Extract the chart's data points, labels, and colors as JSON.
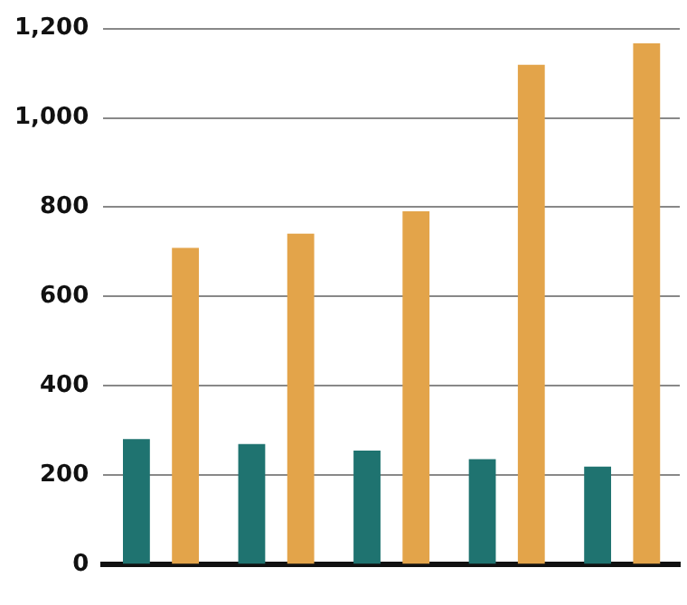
{
  "chart_data": {
    "type": "bar",
    "categories": [
      null,
      null,
      null,
      null,
      null
    ],
    "series": [
      {
        "color": "#1f7370",
        "values": [
          281,
          270,
          255,
          236,
          219
        ]
      },
      {
        "color": "#e3a44a",
        "values": [
          709,
          741,
          791,
          1119,
          1167
        ]
      }
    ],
    "ylim": [
      0,
      1200
    ],
    "yticks": [
      0,
      {
        "value": 200,
        "label": "200"
      },
      {
        "value": 400,
        "label": "400"
      },
      {
        "value": 600,
        "label": "600"
      },
      {
        "value": 800,
        "label": "800"
      },
      {
        "value": 1000,
        "label": "1,000"
      },
      {
        "value": 1200,
        "label": "1,200"
      }
    ],
    "grid": "y",
    "legend": false
  }
}
